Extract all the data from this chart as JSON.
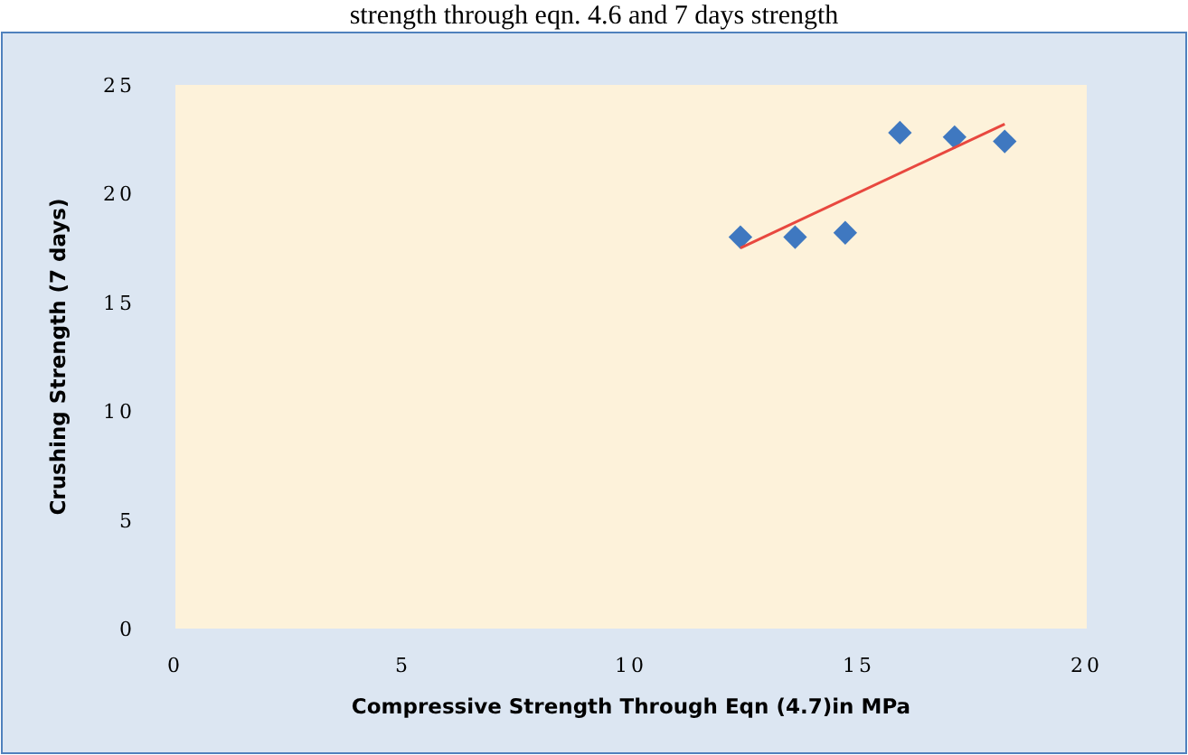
{
  "chart_data": {
    "type": "scatter",
    "title": "strength through eqn. 4.6 and 7 days strength",
    "xlabel": "Compressive Strength Through Eqn (4.7)in MPa",
    "ylabel": "Crushing Strength (7 days)",
    "x": [
      12.4,
      13.6,
      14.7,
      15.9,
      17.1,
      18.2
    ],
    "series": [
      {
        "color": "#3f78c0",
        "values": [
          18.0,
          18.0,
          18.2,
          22.8,
          22.6,
          22.4
        ],
        "marker": "diamond"
      },
      {
        "type": "line",
        "color": "#e8483f",
        "x": [
          12.4,
          18.2
        ],
        "values": [
          17.5,
          23.2
        ]
      }
    ],
    "xlim": [
      0,
      20
    ],
    "xticks": [
      0,
      5,
      10,
      15,
      20
    ],
    "ylim": [
      0,
      25
    ],
    "yticks": [
      0,
      5,
      10,
      15,
      20,
      25
    ],
    "grid": false
  }
}
